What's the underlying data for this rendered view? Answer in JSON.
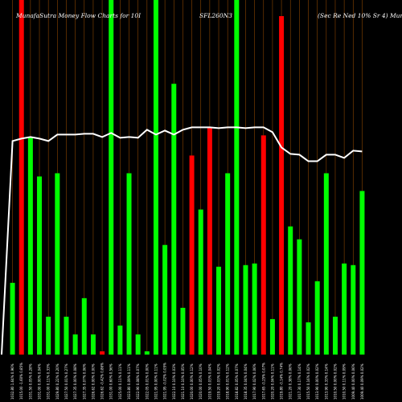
{
  "chart_data": {
    "type": "bar",
    "title_left": "MunafaSutra  Money  Flow  Charts for 10I",
    "title_mid": "SFL260N3",
    "title_right": "(Sec  Re    Ned 10% Sr 4) Munafa",
    "colors": {
      "up": "#00ff00",
      "down": "#ff0000",
      "line": "#ffffff",
      "grid": "#8b4500",
      "bg": "#000000"
    },
    "ylim": [
      0,
      440
    ],
    "bars": [
      {
        "label": "1032.80 1.64% 0.96%",
        "value": 89,
        "color": "up"
      },
      {
        "label": "1015.00 -1.60% 0.85%",
        "value": 440,
        "color": "down"
      },
      {
        "label": "1031.50 0.05% 0.28%",
        "value": 269,
        "color": "up"
      },
      {
        "label": "1031.00 0.00% 0.04%",
        "value": 221,
        "color": "up"
      },
      {
        "label": "1031.00 0.11% 0.33%",
        "value": 47,
        "color": "up"
      },
      {
        "label": "1029.80 0.22% 0.20%",
        "value": 225,
        "color": "up"
      },
      {
        "label": "1027.50 0.01% 0.27%",
        "value": 47,
        "color": "up"
      },
      {
        "label": "1027.35 0.00% 0.08%",
        "value": 25,
        "color": "up"
      },
      {
        "label": "1027.35 0.07% 0.06%",
        "value": 70,
        "color": "up"
      },
      {
        "label": "1026.62 0.00% 0.00%",
        "value": 25,
        "color": "up"
      },
      {
        "label": "1026.62 -0.42% 0.86%",
        "value": 4,
        "color": "down"
      },
      {
        "label": "1031.00 0.60% 0.56%",
        "value": 440,
        "color": "up"
      },
      {
        "label": "1025.00 0.11% 0.11%",
        "value": 36,
        "color": "up"
      },
      {
        "label": "1023.80 0.09% 0.11%",
        "value": 225,
        "color": "up"
      },
      {
        "label": "1022.90 0.08% 0.07%",
        "value": 25,
        "color": "up"
      },
      {
        "label": "1022.05 0.01% 0.00%",
        "value": 4,
        "color": "up"
      },
      {
        "label": "1021.95 0.00% 0.11%",
        "value": 440,
        "color": "up"
      },
      {
        "label": "1021.95 -0.02% 0.05%",
        "value": 136,
        "color": "up"
      },
      {
        "label": "1022.10 0.10% 0.03%",
        "value": 336,
        "color": "up"
      },
      {
        "label": "1021.10 0.10% 0.05%",
        "value": 58,
        "color": "up"
      },
      {
        "label": "1020.00 0.00% 0.12%",
        "value": 247,
        "color": "down"
      },
      {
        "label": "1020.00 0.05% 0.10%",
        "value": 180,
        "color": "up"
      },
      {
        "label": "1019.50 0.03% 0.04%",
        "value": 282,
        "color": "down"
      },
      {
        "label": "1019.20 0.03% 0.02%",
        "value": 109,
        "color": "up"
      },
      {
        "label": "1018.90 0.01% 0.12%",
        "value": 225,
        "color": "up"
      },
      {
        "label": "1018.82 0.05% 0.07%",
        "value": 440,
        "color": "up"
      },
      {
        "label": "1018.35 0.04% 0.04%",
        "value": 111,
        "color": "up"
      },
      {
        "label": "1017.90 0.02% 0.06%",
        "value": 113,
        "color": "up"
      },
      {
        "label": "1017.65 -0.25% 0.07%",
        "value": 272,
        "color": "down"
      },
      {
        "label": "1020.20 0.04% 0.11%",
        "value": 44,
        "color": "up"
      },
      {
        "label": "1019.80 -0.14% 0.74%",
        "value": 420,
        "color": "down"
      },
      {
        "label": "1021.20 0.38% 0.06%",
        "value": 159,
        "color": "up"
      },
      {
        "label": "1017.30 0.17% 0.14%",
        "value": 143,
        "color": "up"
      },
      {
        "label": "1015.50 0.16% 0.02%",
        "value": 40,
        "color": "up"
      },
      {
        "label": "1013.90 0.00% 0.02%",
        "value": 91,
        "color": "up"
      },
      {
        "label": "1013.90 0.33% 0.14%",
        "value": 225,
        "color": "up"
      },
      {
        "label": "1010.50 0.00% 0.02%",
        "value": 47,
        "color": "up"
      },
      {
        "label": "1010.50 0.11% 0.09%",
        "value": 113,
        "color": "up"
      },
      {
        "label": "1009.40 0.00% 0.06%",
        "value": 111,
        "color": "up"
      },
      {
        "label": "1009.40 0.09% 0.02%",
        "value": 203,
        "color": "up"
      }
    ],
    "line_values": [
      265,
      268,
      270,
      268,
      265,
      273,
      273,
      273,
      274,
      274,
      270,
      275,
      269,
      270,
      269,
      279,
      273,
      278,
      273,
      279,
      282,
      282,
      282,
      281,
      282,
      282,
      281,
      282,
      282,
      276,
      257,
      249,
      248,
      240,
      240,
      248,
      248,
      244,
      253,
      252
    ]
  }
}
